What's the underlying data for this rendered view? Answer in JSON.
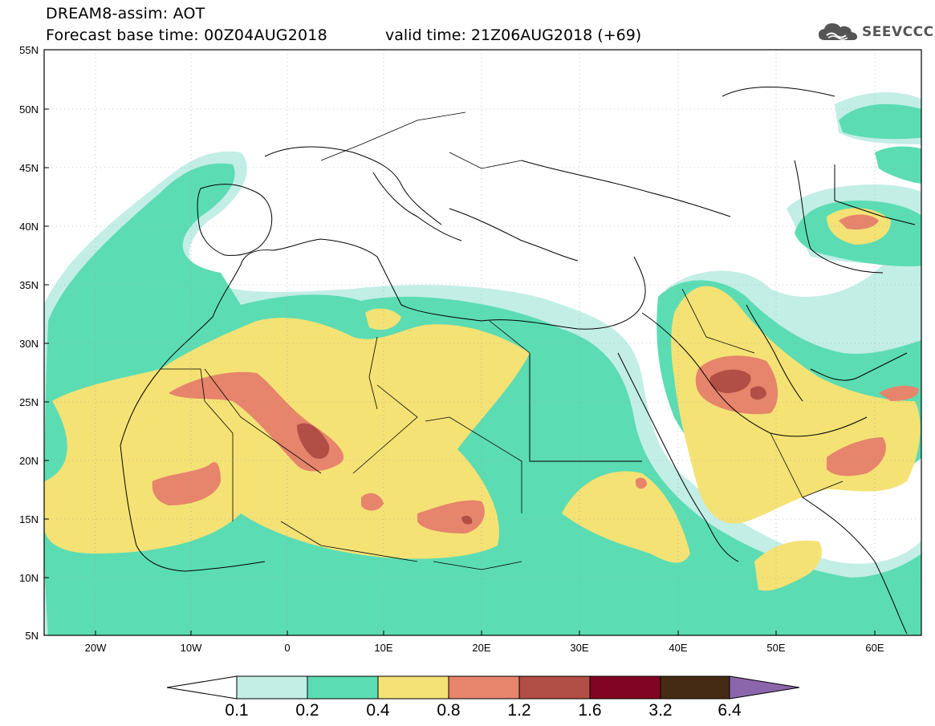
{
  "header": {
    "title": "DREAM8-assim: AOT",
    "forecast_base": "Forecast base time: 00Z04AUG2018",
    "valid_time": "valid time: 21Z06AUG2018 (+69)"
  },
  "logo": {
    "text": "SEEVCCC",
    "icon": "cloud-icon",
    "color": "#555555"
  },
  "map": {
    "lon_range": [
      -25,
      65
    ],
    "lat_range": [
      5,
      55
    ],
    "lat_ticks": [
      "55N",
      "50N",
      "45N",
      "40N",
      "35N",
      "30N",
      "25N",
      "20N",
      "15N",
      "10N",
      "5N"
    ],
    "lon_ticks": [
      "20W",
      "10W",
      "0",
      "10E",
      "20E",
      "30E",
      "40E",
      "50E",
      "60E"
    ]
  },
  "colorbar": {
    "labels": [
      "0.1",
      "0.2",
      "0.4",
      "0.8",
      "1.2",
      "1.6",
      "3.2",
      "6.4"
    ],
    "colors": {
      "c1": "#c2eee6",
      "c2": "#5cdcb2",
      "c3": "#f4e275",
      "c4": "#e6846c",
      "c5": "#b14e45",
      "c6": "#820425",
      "c7": "#452b14",
      "c8": "#8c66aa"
    }
  }
}
